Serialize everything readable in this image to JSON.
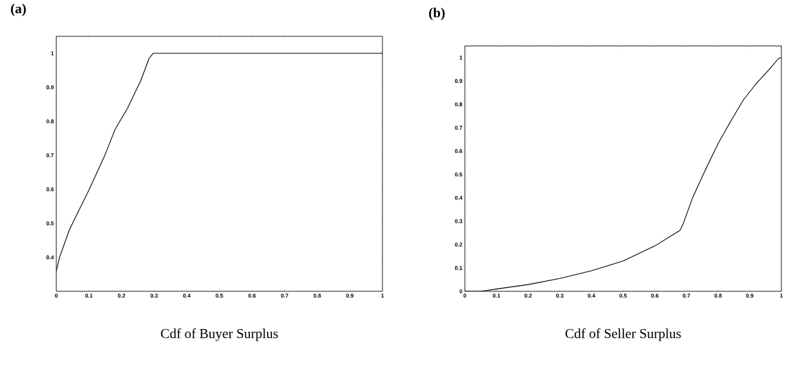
{
  "chart_data": [
    {
      "type": "line",
      "title": "(a)",
      "xlabel": "Cdf of Buyer Surplus",
      "color": "#000000",
      "x": [
        0,
        0.01,
        0.04,
        0.1,
        0.1475,
        0.18,
        0.219,
        0.259,
        0.285,
        0.297,
        1
      ],
      "values": [
        0.359,
        0.4,
        0.481,
        0.598,
        0.697,
        0.776,
        0.84,
        0.92,
        0.986,
        1.0,
        1.0
      ],
      "xlim": [
        0,
        1
      ],
      "ylim": [
        0.3,
        1.05
      ],
      "xticks": [
        0,
        0.1,
        0.2,
        0.3,
        0.4,
        0.5,
        0.6,
        0.7,
        0.8,
        0.9,
        1
      ],
      "yticks": [
        0.4,
        0.5,
        0.6,
        0.7,
        0.8,
        0.9,
        1
      ]
    },
    {
      "type": "line",
      "title": "(b)",
      "xlabel": "Cdf of Seller Surplus",
      "color": "#000000",
      "x": [
        0,
        0.05,
        0.1,
        0.2,
        0.3,
        0.4,
        0.5,
        0.6,
        0.68,
        0.69,
        0.72,
        0.76,
        0.8,
        0.84,
        0.88,
        0.92,
        0.96,
        0.99,
        1
      ],
      "values": [
        0,
        0,
        0.01,
        0.029,
        0.055,
        0.088,
        0.13,
        0.194,
        0.261,
        0.29,
        0.402,
        0.52,
        0.632,
        0.728,
        0.819,
        0.888,
        0.947,
        0.995,
        1.0
      ],
      "xlim": [
        0,
        1
      ],
      "ylim": [
        0,
        1.05
      ],
      "xticks": [
        0,
        0.1,
        0.2,
        0.3,
        0.4,
        0.5,
        0.6,
        0.7,
        0.8,
        0.9,
        1
      ],
      "yticks": [
        0,
        0.1,
        0.2,
        0.3,
        0.4,
        0.5,
        0.6,
        0.7,
        0.8,
        0.9,
        1
      ]
    }
  ]
}
